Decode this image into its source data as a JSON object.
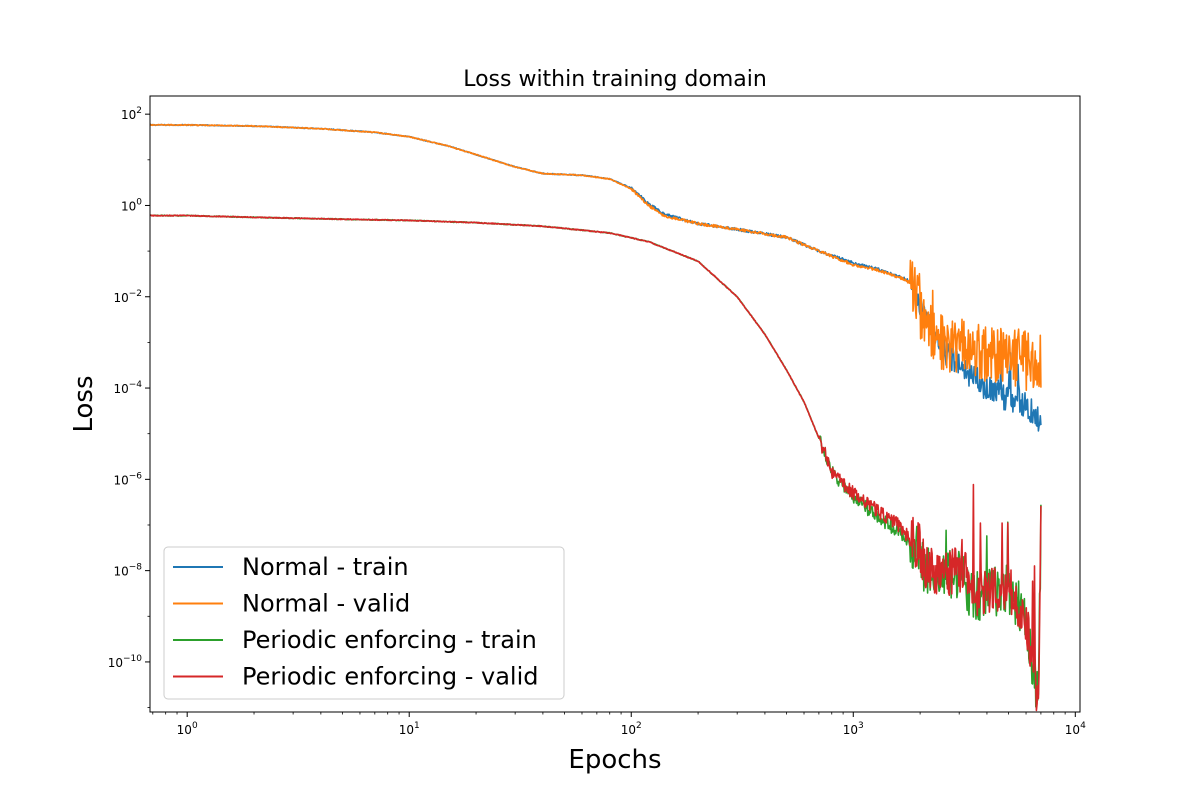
{
  "chart_data": {
    "type": "line",
    "title": "Loss within training domain",
    "xlabel": "Epochs",
    "ylabel": "Loss",
    "xscale": "log",
    "yscale": "log",
    "xlim": [
      0.68,
      10500
    ],
    "ylim": [
      8e-12,
      250
    ],
    "x_ticks": [
      {
        "value": 1,
        "base": "10",
        "exp": "0"
      },
      {
        "value": 10,
        "base": "10",
        "exp": "1"
      },
      {
        "value": 100,
        "base": "10",
        "exp": "2"
      },
      {
        "value": 1000,
        "base": "10",
        "exp": "3"
      },
      {
        "value": 10000,
        "base": "10",
        "exp": "4"
      }
    ],
    "y_ticks": [
      {
        "value": 100,
        "base": "10",
        "exp": "2"
      },
      {
        "value": 1,
        "base": "10",
        "exp": "0"
      },
      {
        "value": 0.01,
        "base": "10",
        "exp": "−2"
      },
      {
        "value": 0.0001,
        "base": "10",
        "exp": "−4"
      },
      {
        "value": 1e-06,
        "base": "10",
        "exp": "−6"
      },
      {
        "value": 1e-08,
        "base": "10",
        "exp": "−8"
      },
      {
        "value": 1e-10,
        "base": "10",
        "exp": "−10"
      }
    ],
    "legend_position": "lower-left",
    "grid": false,
    "series": [
      {
        "name": "Normal - train",
        "color": "#1f77b4",
        "points": [
          [
            0.68,
            58
          ],
          [
            1,
            58
          ],
          [
            2,
            55
          ],
          [
            4,
            48
          ],
          [
            7,
            40
          ],
          [
            10,
            32
          ],
          [
            15,
            20
          ],
          [
            20,
            13
          ],
          [
            30,
            7
          ],
          [
            40,
            5
          ],
          [
            60,
            4.6
          ],
          [
            80,
            3.8
          ],
          [
            100,
            2.4
          ],
          [
            120,
            1.1
          ],
          [
            140,
            0.65
          ],
          [
            200,
            0.4
          ],
          [
            300,
            0.3
          ],
          [
            500,
            0.2
          ],
          [
            700,
            0.1
          ],
          [
            1000,
            0.055
          ],
          [
            1300,
            0.04
          ],
          [
            1700,
            0.025
          ],
          [
            1850,
            0.02
          ],
          [
            2000,
            0.005
          ],
          [
            2100,
            0.003
          ],
          [
            2500,
            0.0008
          ],
          [
            3000,
            0.0003
          ],
          [
            4000,
            0.0001
          ],
          [
            5000,
            6e-05
          ],
          [
            6000,
            4e-05
          ],
          [
            7000,
            2e-05
          ]
        ]
      },
      {
        "name": "Normal - valid",
        "color": "#ff7f0e",
        "points": [
          [
            0.68,
            58
          ],
          [
            1,
            58
          ],
          [
            2,
            55
          ],
          [
            4,
            48
          ],
          [
            7,
            40
          ],
          [
            10,
            32
          ],
          [
            15,
            20
          ],
          [
            20,
            13
          ],
          [
            30,
            7
          ],
          [
            40,
            5
          ],
          [
            60,
            4.6
          ],
          [
            80,
            3.8
          ],
          [
            100,
            2.3
          ],
          [
            120,
            1.0
          ],
          [
            140,
            0.6
          ],
          [
            200,
            0.4
          ],
          [
            300,
            0.3
          ],
          [
            500,
            0.2
          ],
          [
            700,
            0.1
          ],
          [
            1000,
            0.05
          ],
          [
            1300,
            0.038
          ],
          [
            1700,
            0.024
          ],
          [
            1850,
            0.018
          ],
          [
            2000,
            0.004
          ],
          [
            2100,
            0.002
          ],
          [
            2500,
            0.001
          ],
          [
            3000,
            0.0008
          ],
          [
            4000,
            0.0006
          ],
          [
            5000,
            0.0005
          ],
          [
            6000,
            0.0004
          ],
          [
            7000,
            0.0004
          ]
        ]
      },
      {
        "name": "Periodic enforcing - train",
        "color": "#2ca02c",
        "points": [
          [
            0.68,
            0.6
          ],
          [
            1,
            0.6
          ],
          [
            2,
            0.55
          ],
          [
            5,
            0.5
          ],
          [
            10,
            0.47
          ],
          [
            20,
            0.42
          ],
          [
            40,
            0.35
          ],
          [
            80,
            0.25
          ],
          [
            120,
            0.16
          ],
          [
            200,
            0.06
          ],
          [
            300,
            0.01
          ],
          [
            400,
            0.0015
          ],
          [
            500,
            0.00025
          ],
          [
            600,
            5e-05
          ],
          [
            700,
            8e-06
          ],
          [
            800,
            1.5e-06
          ],
          [
            1000,
            4e-07
          ],
          [
            1300,
            1.5e-07
          ],
          [
            1600,
            7e-08
          ],
          [
            1800,
            4e-08
          ],
          [
            2000,
            3e-08
          ],
          [
            2100,
            9e-09
          ],
          [
            2500,
            8e-09
          ],
          [
            3000,
            7.5e-09
          ],
          [
            3200,
            8.5e-09
          ],
          [
            3300,
            2.6e-09
          ],
          [
            4000,
            3e-09
          ],
          [
            5000,
            4e-09
          ],
          [
            6000,
            1e-09
          ],
          [
            6800,
            1.2e-11
          ],
          [
            7000,
            1e-07
          ]
        ]
      },
      {
        "name": "Periodic enforcing - valid",
        "color": "#d62728",
        "points": [
          [
            0.68,
            0.6
          ],
          [
            1,
            0.6
          ],
          [
            2,
            0.55
          ],
          [
            5,
            0.5
          ],
          [
            10,
            0.47
          ],
          [
            20,
            0.42
          ],
          [
            40,
            0.35
          ],
          [
            80,
            0.25
          ],
          [
            120,
            0.16
          ],
          [
            200,
            0.06
          ],
          [
            300,
            0.01
          ],
          [
            400,
            0.0015
          ],
          [
            500,
            0.00025
          ],
          [
            600,
            5e-05
          ],
          [
            700,
            8e-06
          ],
          [
            800,
            1.5e-06
          ],
          [
            1000,
            5e-07
          ],
          [
            1300,
            2e-07
          ],
          [
            1600,
            1e-07
          ],
          [
            1800,
            5e-08
          ],
          [
            2000,
            3e-08
          ],
          [
            2100,
            1e-08
          ],
          [
            2500,
            1e-08
          ],
          [
            3000,
            9e-09
          ],
          [
            3200,
            1e-08
          ],
          [
            3300,
            3e-09
          ],
          [
            4000,
            4e-09
          ],
          [
            5000,
            5e-09
          ],
          [
            6000,
            1e-09
          ],
          [
            6800,
            1e-11
          ],
          [
            7000,
            1e-07
          ]
        ]
      }
    ]
  }
}
